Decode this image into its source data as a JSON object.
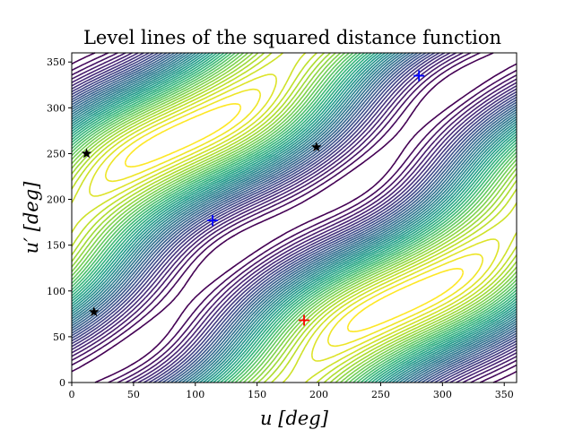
{
  "chart_data": {
    "type": "contour",
    "title": "Level lines of the squared distance function",
    "xlabel": "u [deg]",
    "ylabel": "u′ [deg]",
    "xlim": [
      0,
      360
    ],
    "ylim": [
      0,
      360
    ],
    "xticks": [
      "0",
      "50",
      "100",
      "150",
      "200",
      "250",
      "300",
      "350"
    ],
    "yticks": [
      "0",
      "50",
      "100",
      "150",
      "200",
      "250",
      "300",
      "350"
    ],
    "grid": false,
    "colormap": "viridis",
    "markers": [
      {
        "name": "star",
        "color": "#000000",
        "x": 12,
        "y": 250
      },
      {
        "name": "star",
        "color": "#000000",
        "x": 18,
        "y": 77
      },
      {
        "name": "star",
        "color": "#000000",
        "x": 198,
        "y": 257
      },
      {
        "name": "plus",
        "color": "#0000ff",
        "x": 114,
        "y": 177
      },
      {
        "name": "plus",
        "color": "#0000ff",
        "x": 281,
        "y": 335
      },
      {
        "name": "plus",
        "color": "#ff0000",
        "x": 188,
        "y": 68
      }
    ]
  }
}
